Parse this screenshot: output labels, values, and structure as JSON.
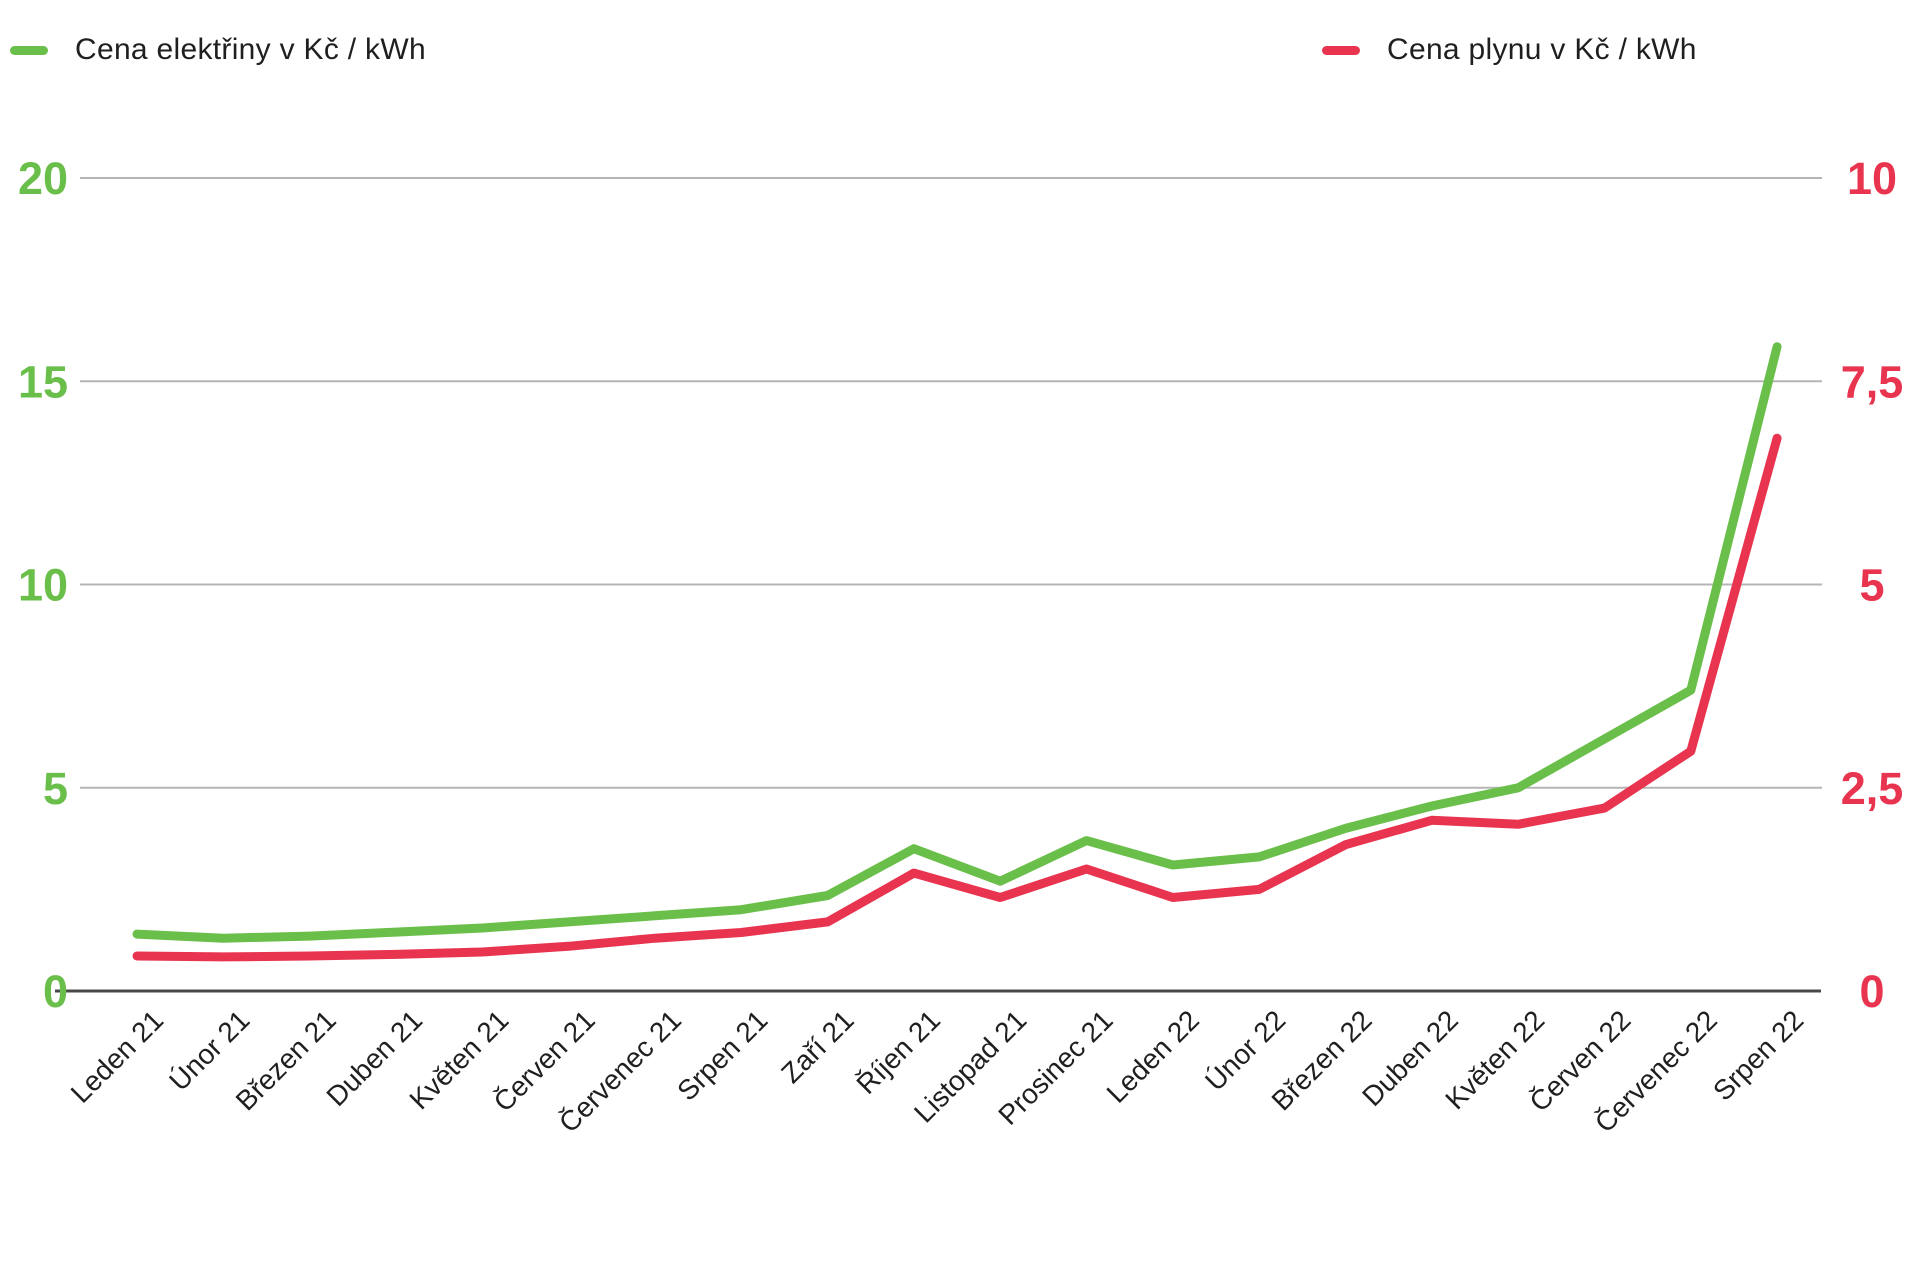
{
  "legend": {
    "electricity": {
      "label": "Cena elektřiny v Kč / kWh",
      "color": "#6abf4a"
    },
    "gas": {
      "label": "Cena plynu v Kč / kWh",
      "color": "#e8344f"
    }
  },
  "chart_data": {
    "type": "line",
    "title": "",
    "categories": [
      "Leden 21",
      "Únor 21",
      "Březen 21",
      "Duben 21",
      "Květen 21",
      "Červen 21",
      "Červenec 21",
      "Srpen 21",
      "Zaří 21",
      "Říjen 21",
      "Listopad 21",
      "Prosinec 21",
      "Leden 22",
      "Únor 22",
      "Březen 22",
      "Duben 22",
      "Květen 22",
      "Červen 22",
      "Červenec 22",
      "Srpen 22"
    ],
    "series": [
      {
        "name": "Cena elektřiny v Kč / kWh",
        "axis": "left",
        "color": "#6abf4a",
        "values": [
          1.4,
          1.3,
          1.35,
          1.45,
          1.55,
          1.7,
          1.85,
          2.0,
          2.35,
          3.5,
          2.7,
          3.7,
          3.1,
          3.3,
          4.0,
          4.55,
          5.0,
          6.2,
          7.4,
          15.85
        ]
      },
      {
        "name": "Cena plynu v Kč / kWh",
        "axis": "right",
        "color": "#e8344f",
        "values": [
          0.43,
          0.42,
          0.43,
          0.45,
          0.48,
          0.55,
          0.65,
          0.72,
          0.85,
          1.45,
          1.15,
          1.5,
          1.15,
          1.25,
          1.8,
          2.1,
          2.05,
          2.25,
          2.95,
          6.8
        ]
      }
    ],
    "left_axis": {
      "color": "#6abf4a",
      "range": [
        0,
        20
      ],
      "ticks": [
        {
          "label": "20",
          "value": 20
        },
        {
          "label": "15",
          "value": 15
        },
        {
          "label": "10",
          "value": 10
        },
        {
          "label": "5",
          "value": 5
        },
        {
          "label": "0",
          "value": 0
        }
      ]
    },
    "right_axis": {
      "color": "#e8344f",
      "range": [
        0,
        10
      ],
      "ticks": [
        {
          "label": "10",
          "value": 10
        },
        {
          "label": "7,5",
          "value": 7.5
        },
        {
          "label": "5",
          "value": 5
        },
        {
          "label": "2,5",
          "value": 2.5
        },
        {
          "label": "0",
          "value": 0
        }
      ]
    },
    "grid": true,
    "legend_position": "top"
  }
}
